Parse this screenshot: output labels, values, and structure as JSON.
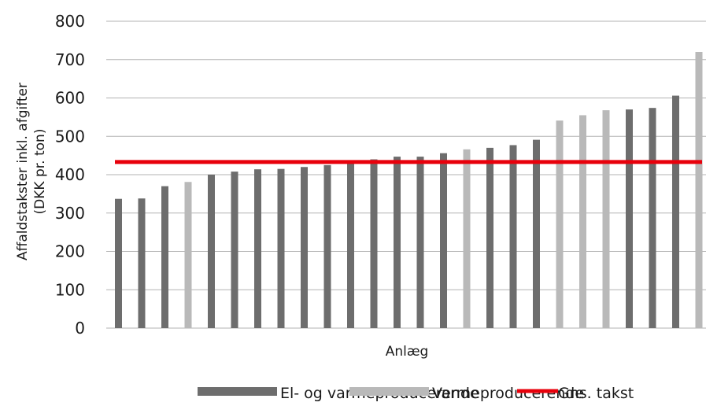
{
  "chart_data": {
    "type": "bar",
    "xlabel": "Anlæg",
    "ylabel_lines": [
      "Affaldstakster inkl. afgifter",
      "(DKK pr. ton)"
    ],
    "ylim": [
      0,
      800
    ],
    "yticks": [
      0,
      100,
      200,
      300,
      400,
      500,
      600,
      700,
      800
    ],
    "grid": true,
    "legend_position": "bottom",
    "categories_count": 26,
    "values": [
      337,
      338,
      370,
      381,
      400,
      408,
      414,
      415,
      420,
      425,
      433,
      440,
      447,
      447,
      456,
      466,
      470,
      477,
      491,
      541,
      555,
      568,
      570,
      574,
      606,
      720
    ],
    "groups": [
      "el",
      "el",
      "el",
      "varme",
      "el",
      "el",
      "el",
      "el",
      "el",
      "el",
      "el",
      "el",
      "el",
      "el",
      "el",
      "varme",
      "el",
      "el",
      "el",
      "varme",
      "varme",
      "varme",
      "el",
      "el",
      "el",
      "varme"
    ],
    "series": [
      {
        "key": "el",
        "name": "El- og varmeproducerende",
        "color": "#6d6d6d"
      },
      {
        "key": "varme",
        "name": "Varmeproducerende",
        "color": "#b9b9b9"
      }
    ],
    "average": {
      "name": "Gns. takst",
      "value": 433,
      "color": "#e8000b"
    },
    "colors": {
      "grid": "#b3b3b3",
      "text": "#1a1a1a"
    }
  }
}
